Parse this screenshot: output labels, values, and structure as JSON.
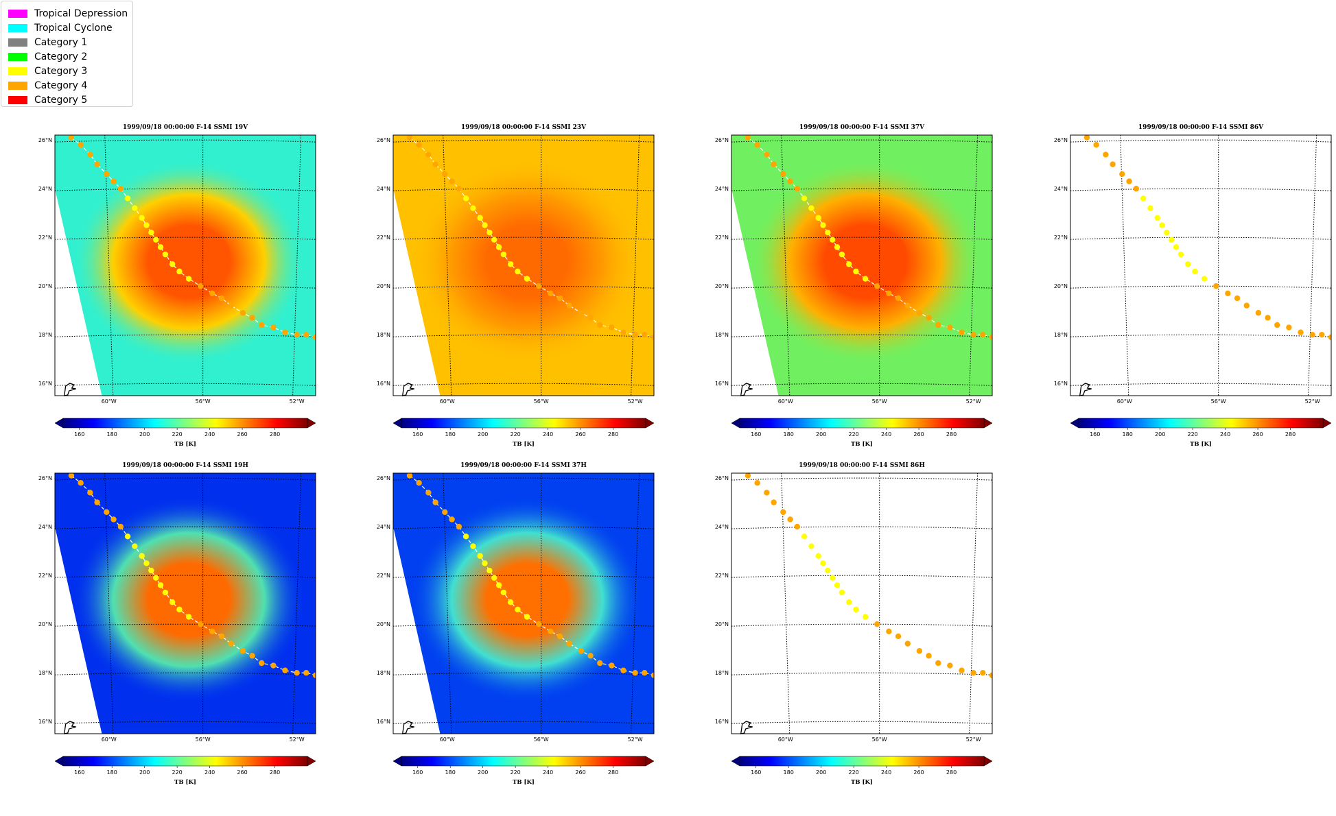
{
  "legend": {
    "items": [
      {
        "label": "Tropical Depression",
        "color": "#ff00ff"
      },
      {
        "label": "Tropical Cyclone",
        "color": "#00ffff"
      },
      {
        "label": "Category 1",
        "color": "#808080"
      },
      {
        "label": "Category 2",
        "color": "#00ff00"
      },
      {
        "label": "Category 3",
        "color": "#ffff00"
      },
      {
        "label": "Category 4",
        "color": "#ffa500"
      },
      {
        "label": "Category 5",
        "color": "#ff0000"
      }
    ]
  },
  "panels": [
    {
      "title": "1999/09/18 00:00:00  F-14 SSMI 19V",
      "field": "V",
      "bg": "#30f0d0",
      "core": "#ff5500",
      "ring": "#ffd000",
      "track_line": true
    },
    {
      "title": "1999/09/18 00:00:00  F-14 SSMI 23V",
      "field": "V23",
      "bg": "#ffc000",
      "core": "#ff6a00",
      "ring": "#ff9a00",
      "track_line": true
    },
    {
      "title": "1999/09/18 00:00:00  F-14 SSMI 37V",
      "field": "V37",
      "bg": "#70f060",
      "core": "#ff4a00",
      "ring": "#ffb000",
      "track_line": true
    },
    {
      "title": "1999/09/18 00:00:00  F-14 SSMI 86V",
      "field": "none",
      "bg": "#ffffff",
      "core": "#ffffff",
      "ring": "#ffffff",
      "track_line": false
    },
    {
      "title": "1999/09/18 00:00:00  F-14 SSMI 19H",
      "field": "H",
      "bg": "#0030ee",
      "core": "#ff6a00",
      "ring": "#50e0b0",
      "track_line": true
    },
    {
      "title": "1999/09/18 00:00:00  F-14 SSMI 37H",
      "field": "H37",
      "bg": "#0040f0",
      "core": "#ff7000",
      "ring": "#40e0d0",
      "track_line": true
    },
    {
      "title": "1999/09/18 00:00:00  F-14 SSMI 86H",
      "field": "none",
      "bg": "#ffffff",
      "core": "#ffffff",
      "ring": "#ffffff",
      "track_line": false
    }
  ],
  "axes": {
    "lat_labels": [
      "26°N",
      "24°N",
      "22°N",
      "20°N",
      "18°N",
      "16°N"
    ],
    "lon_labels": [
      "60°W",
      "56°W",
      "52°W"
    ],
    "lat_range": [
      15.5,
      26.2
    ],
    "lon_range": [
      -62.3,
      -51.2
    ]
  },
  "colorbar": {
    "label": "TB [K]",
    "ticks": [
      "160",
      "180",
      "200",
      "220",
      "240",
      "260",
      "280"
    ],
    "range": [
      150,
      300
    ],
    "colormap": "jet"
  },
  "track": {
    "points": [
      {
        "lon": -61.6,
        "lat": 26.1,
        "cat": 4
      },
      {
        "lon": -61.2,
        "lat": 25.8,
        "cat": 4
      },
      {
        "lon": -60.8,
        "lat": 25.4,
        "cat": 4
      },
      {
        "lon": -60.5,
        "lat": 25.0,
        "cat": 4
      },
      {
        "lon": -60.1,
        "lat": 24.6,
        "cat": 4
      },
      {
        "lon": -59.8,
        "lat": 24.3,
        "cat": 4
      },
      {
        "lon": -59.5,
        "lat": 24.0,
        "cat": 4
      },
      {
        "lon": -59.2,
        "lat": 23.6,
        "cat": 3
      },
      {
        "lon": -58.9,
        "lat": 23.2,
        "cat": 3
      },
      {
        "lon": -58.6,
        "lat": 22.8,
        "cat": 3
      },
      {
        "lon": -58.4,
        "lat": 22.5,
        "cat": 3
      },
      {
        "lon": -58.2,
        "lat": 22.2,
        "cat": 3
      },
      {
        "lon": -58.0,
        "lat": 21.9,
        "cat": 3
      },
      {
        "lon": -57.8,
        "lat": 21.6,
        "cat": 3
      },
      {
        "lon": -57.6,
        "lat": 21.3,
        "cat": 3
      },
      {
        "lon": -57.3,
        "lat": 20.9,
        "cat": 3
      },
      {
        "lon": -57.0,
        "lat": 20.6,
        "cat": 3
      },
      {
        "lon": -56.6,
        "lat": 20.3,
        "cat": 3
      },
      {
        "lon": -56.1,
        "lat": 20.0,
        "cat": 4
      },
      {
        "lon": -55.6,
        "lat": 19.7,
        "cat": 4
      },
      {
        "lon": -55.2,
        "lat": 19.5,
        "cat": 4
      },
      {
        "lon": -54.8,
        "lat": 19.2,
        "cat": 4
      },
      {
        "lon": -54.3,
        "lat": 18.9,
        "cat": 4
      },
      {
        "lon": -53.9,
        "lat": 18.7,
        "cat": 4
      },
      {
        "lon": -53.5,
        "lat": 18.4,
        "cat": 4
      },
      {
        "lon": -53.0,
        "lat": 18.3,
        "cat": 4
      },
      {
        "lon": -52.5,
        "lat": 18.1,
        "cat": 4
      },
      {
        "lon": -52.0,
        "lat": 18.0,
        "cat": 4
      },
      {
        "lon": -51.6,
        "lat": 18.0,
        "cat": 4
      },
      {
        "lon": -51.2,
        "lat": 17.9,
        "cat": 4
      }
    ]
  }
}
